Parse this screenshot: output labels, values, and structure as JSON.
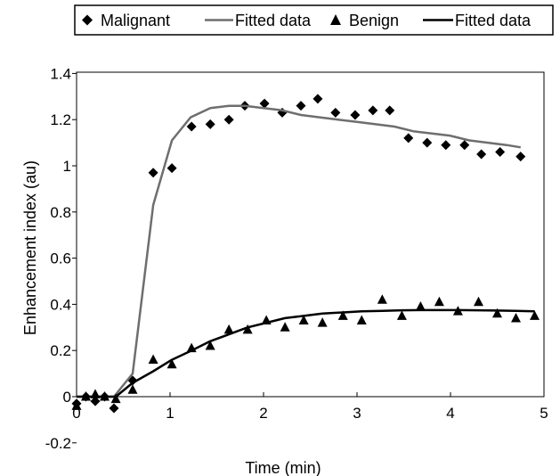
{
  "chart_data": {
    "type": "scatter",
    "xlabel": "Time (min)",
    "ylabel": "Enhancement index (au)",
    "xlim": [
      0,
      5
    ],
    "ylim": [
      -0.2,
      1.4
    ],
    "grid": false,
    "legend_position": "top",
    "x_ticks": [
      {
        "value": 0,
        "label": "0"
      },
      {
        "value": 1,
        "label": "1"
      },
      {
        "value": 2,
        "label": "2"
      },
      {
        "value": 3,
        "label": "3"
      },
      {
        "value": 4,
        "label": "4"
      },
      {
        "value": 5,
        "label": "5"
      }
    ],
    "y_ticks": [
      {
        "value": -0.2,
        "label": "-0.2"
      },
      {
        "value": 0,
        "label": "0"
      },
      {
        "value": 0.2,
        "label": "0.2"
      },
      {
        "value": 0.4,
        "label": "0.4"
      },
      {
        "value": 0.6,
        "label": "0.6"
      },
      {
        "value": 0.8,
        "label": "0.8"
      },
      {
        "value": 1,
        "label": "1"
      },
      {
        "value": 1.2,
        "label": "1.2"
      },
      {
        "value": 1.4,
        "label": "1.4"
      }
    ],
    "series": [
      {
        "name": "Malignant",
        "kind": "markers",
        "marker": "diamond",
        "color": "#000000",
        "points": [
          [
            0.0,
            -0.03
          ],
          [
            0.1,
            0.0
          ],
          [
            0.2,
            -0.02
          ],
          [
            0.3,
            0.0
          ],
          [
            0.4,
            -0.05
          ],
          [
            0.6,
            0.07
          ],
          [
            0.82,
            0.97
          ],
          [
            1.02,
            0.99
          ],
          [
            1.23,
            1.17
          ],
          [
            1.43,
            1.18
          ],
          [
            1.63,
            1.2
          ],
          [
            1.8,
            1.26
          ],
          [
            2.01,
            1.27
          ],
          [
            2.2,
            1.23
          ],
          [
            2.4,
            1.26
          ],
          [
            2.58,
            1.29
          ],
          [
            2.77,
            1.23
          ],
          [
            2.98,
            1.22
          ],
          [
            3.17,
            1.24
          ],
          [
            3.35,
            1.24
          ],
          [
            3.55,
            1.12
          ],
          [
            3.75,
            1.1
          ],
          [
            3.95,
            1.09
          ],
          [
            4.15,
            1.09
          ],
          [
            4.33,
            1.05
          ],
          [
            4.53,
            1.06
          ],
          [
            4.75,
            1.04
          ]
        ]
      },
      {
        "name": "Fitted data",
        "kind": "line",
        "color": "#6e6e6e",
        "points": [
          [
            0.0,
            0.0
          ],
          [
            0.4,
            0.0
          ],
          [
            0.6,
            0.1
          ],
          [
            0.82,
            0.83
          ],
          [
            1.02,
            1.11
          ],
          [
            1.22,
            1.21
          ],
          [
            1.43,
            1.25
          ],
          [
            1.63,
            1.26
          ],
          [
            1.8,
            1.26
          ],
          [
            2.0,
            1.25
          ],
          [
            2.2,
            1.24
          ],
          [
            2.4,
            1.22
          ],
          [
            2.6,
            1.21
          ],
          [
            2.8,
            1.2
          ],
          [
            3.0,
            1.19
          ],
          [
            3.2,
            1.18
          ],
          [
            3.4,
            1.17
          ],
          [
            3.6,
            1.15
          ],
          [
            3.8,
            1.14
          ],
          [
            4.0,
            1.13
          ],
          [
            4.2,
            1.11
          ],
          [
            4.4,
            1.1
          ],
          [
            4.6,
            1.09
          ],
          [
            4.75,
            1.08
          ]
        ]
      },
      {
        "name": "Benign",
        "kind": "markers",
        "marker": "triangle",
        "color": "#000000",
        "points": [
          [
            0.0,
            -0.04
          ],
          [
            0.1,
            0.0
          ],
          [
            0.2,
            0.01
          ],
          [
            0.3,
            0.0
          ],
          [
            0.42,
            -0.01
          ],
          [
            0.6,
            0.03
          ],
          [
            0.82,
            0.16
          ],
          [
            1.02,
            0.14
          ],
          [
            1.23,
            0.21
          ],
          [
            1.43,
            0.22
          ],
          [
            1.63,
            0.29
          ],
          [
            1.83,
            0.29
          ],
          [
            2.03,
            0.33
          ],
          [
            2.23,
            0.3
          ],
          [
            2.43,
            0.33
          ],
          [
            2.63,
            0.32
          ],
          [
            2.85,
            0.35
          ],
          [
            3.05,
            0.33
          ],
          [
            3.27,
            0.42
          ],
          [
            3.48,
            0.35
          ],
          [
            3.68,
            0.39
          ],
          [
            3.88,
            0.41
          ],
          [
            4.08,
            0.37
          ],
          [
            4.3,
            0.41
          ],
          [
            4.5,
            0.36
          ],
          [
            4.7,
            0.34
          ],
          [
            4.9,
            0.35
          ]
        ]
      },
      {
        "name": "Fitted data",
        "kind": "line",
        "color": "#000000",
        "points": [
          [
            0.0,
            0.0
          ],
          [
            0.42,
            0.0
          ],
          [
            0.6,
            0.06
          ],
          [
            0.82,
            0.11
          ],
          [
            1.02,
            0.16
          ],
          [
            1.23,
            0.2
          ],
          [
            1.43,
            0.24
          ],
          [
            1.63,
            0.27
          ],
          [
            1.83,
            0.3
          ],
          [
            2.03,
            0.32
          ],
          [
            2.23,
            0.34
          ],
          [
            2.43,
            0.35
          ],
          [
            2.63,
            0.36
          ],
          [
            2.85,
            0.365
          ],
          [
            3.05,
            0.37
          ],
          [
            3.27,
            0.372
          ],
          [
            3.48,
            0.374
          ],
          [
            3.68,
            0.375
          ],
          [
            3.88,
            0.375
          ],
          [
            4.08,
            0.375
          ],
          [
            4.3,
            0.374
          ],
          [
            4.5,
            0.373
          ],
          [
            4.7,
            0.372
          ],
          [
            4.9,
            0.37
          ]
        ]
      }
    ]
  }
}
